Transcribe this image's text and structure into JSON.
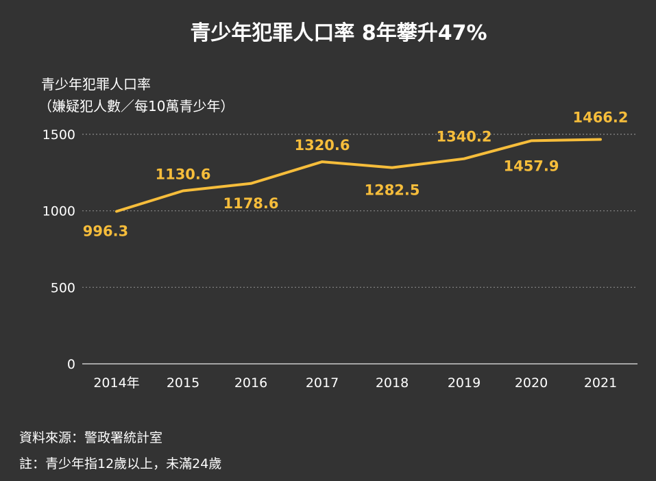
{
  "chart_data": {
    "type": "line",
    "title": "青少年犯罪人口率 8年攀升47%",
    "ylabel": "青少年犯罪人口率",
    "ylabel_sub": "（嫌疑犯人數／每10萬青少年）",
    "categories": [
      "2014年",
      "2015",
      "2016",
      "2017",
      "2018",
      "2019",
      "2020",
      "2021"
    ],
    "series": [
      {
        "values": [
          996.3,
          1130.6,
          1178.6,
          1320.6,
          1282.5,
          1340.2,
          1457.9,
          1466.2
        ]
      }
    ],
    "data_labels": [
      "996.3",
      "1130.6",
      "1178.6",
      "1320.6",
      "1282.5",
      "1340.2",
      "1457.9",
      "1466.2"
    ],
    "yticks": [
      "0",
      "500",
      "1000",
      "1500"
    ],
    "ytick_values": [
      0,
      500,
      1000,
      1500
    ],
    "ylim": [
      0,
      1500
    ],
    "grid": true,
    "legend": "none"
  },
  "footer": {
    "source": "資料來源：警政署統計室",
    "note": "註：青少年指12歲以上，未滿24歲"
  },
  "colors": {
    "background": "#333333",
    "line": "#f6bd3b",
    "text": "#ffffff",
    "grid": "#8a8a8a"
  }
}
